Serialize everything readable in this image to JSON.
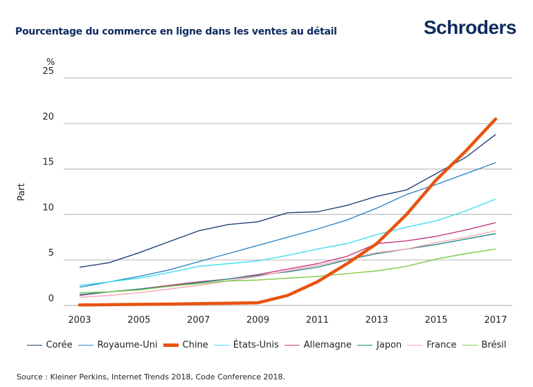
{
  "header": {
    "title": "Pourcentage du commerce en ligne dans les ventes au détail",
    "logo": "Schroders"
  },
  "footer": {
    "source": "Source : Kleiner Perkins, Internet Trends 2018, Code Conference 2018."
  },
  "chart_data": {
    "type": "line",
    "title": "Pourcentage du commerce en ligne dans les ventes au détail",
    "xlabel": "",
    "ylabel": "Part",
    "yunit": "%",
    "ylim": [
      0,
      25
    ],
    "yticks": [
      "0",
      "5",
      "10",
      "15",
      "20",
      "25"
    ],
    "xticks": [
      "2003",
      "2005",
      "2007",
      "2009",
      "2011",
      "2013",
      "2015",
      "2017"
    ],
    "x": [
      2003,
      2004,
      2005,
      2006,
      2007,
      2008,
      2009,
      2010,
      2011,
      2012,
      2013,
      2014,
      2015,
      2016,
      2017
    ],
    "grid": "horizontal",
    "legend": "bottom",
    "series": [
      {
        "name": "Corée",
        "color": "#1f3f73",
        "emphasis": false,
        "values": [
          4.2,
          4.7,
          5.8,
          7.0,
          8.2,
          8.9,
          9.2,
          10.2,
          10.3,
          11.0,
          12.0,
          12.7,
          14.5,
          16.3,
          18.8
        ]
      },
      {
        "name": "Royaume-Uni",
        "color": "#2f86c5",
        "emphasis": false,
        "values": [
          2.0,
          2.6,
          3.2,
          3.9,
          4.8,
          5.7,
          6.6,
          7.5,
          8.4,
          9.4,
          10.7,
          12.2,
          13.3,
          14.5,
          15.7
        ]
      },
      {
        "name": "Chine",
        "color": "#e8540f",
        "emphasis": true,
        "values": [
          0.05,
          0.08,
          0.12,
          0.15,
          0.2,
          0.25,
          0.3,
          1.1,
          2.6,
          4.6,
          6.8,
          10.0,
          13.8,
          17.0,
          20.5
        ]
      },
      {
        "name": "États-Unis",
        "color": "#3fe0f0",
        "emphasis": false,
        "values": [
          2.2,
          2.6,
          3.0,
          3.6,
          4.3,
          4.6,
          4.9,
          5.5,
          6.2,
          6.8,
          7.8,
          8.6,
          9.3,
          10.4,
          11.7
        ]
      },
      {
        "name": "Allemagne",
        "color": "#c43a80",
        "emphasis": false,
        "values": [
          1.1,
          1.5,
          1.8,
          2.2,
          2.6,
          2.9,
          3.4,
          4.0,
          4.6,
          5.4,
          6.8,
          7.1,
          7.6,
          8.3,
          9.1
        ]
      },
      {
        "name": "Japon",
        "color": "#1f8a85",
        "emphasis": false,
        "values": [
          1.2,
          1.5,
          1.8,
          2.1,
          2.5,
          2.9,
          3.3,
          3.7,
          4.2,
          5.0,
          5.7,
          6.2,
          6.7,
          7.3,
          7.9
        ]
      },
      {
        "name": "France",
        "color": "#f5a5b5",
        "emphasis": false,
        "values": [
          0.9,
          1.1,
          1.4,
          1.8,
          2.2,
          2.7,
          3.2,
          3.8,
          4.4,
          5.1,
          5.8,
          6.2,
          6.9,
          7.5,
          8.2
        ]
      },
      {
        "name": "Brésil",
        "color": "#7ccb4a",
        "emphasis": false,
        "values": [
          1.4,
          1.5,
          1.7,
          2.1,
          2.4,
          2.7,
          2.8,
          3.0,
          3.2,
          3.5,
          3.8,
          4.3,
          5.1,
          5.7,
          6.2
        ]
      }
    ]
  }
}
